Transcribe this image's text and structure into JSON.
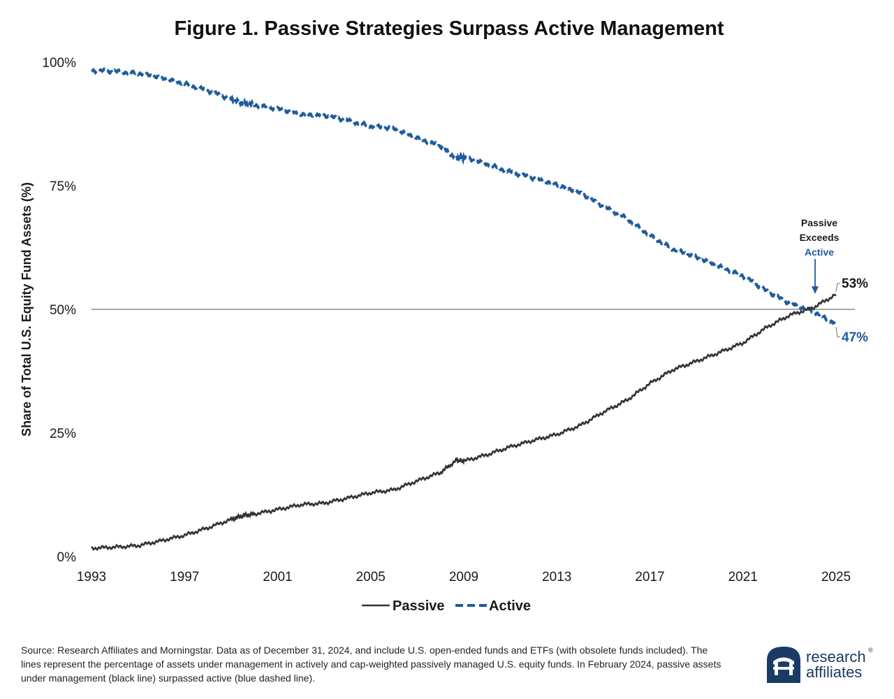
{
  "chart_data": {
    "type": "line",
    "title": "Figure 1. Passive Strategies Surpass Active Management",
    "xlabel": "",
    "ylabel": "Share of Total U.S. Equity Fund Assets (%)",
    "xlim": [
      1993,
      2025
    ],
    "ylim": [
      0,
      100
    ],
    "x_ticks": [
      1993,
      1997,
      2001,
      2005,
      2009,
      2013,
      2017,
      2021,
      2025
    ],
    "y_ticks": [
      {
        "value": 0,
        "label": "0%"
      },
      {
        "value": 25,
        "label": "25%"
      },
      {
        "value": 50,
        "label": "50%"
      },
      {
        "value": 75,
        "label": "75%"
      },
      {
        "value": 100,
        "label": "100%"
      }
    ],
    "reference_line": {
      "y": 50
    },
    "series": [
      {
        "name": "Passive",
        "style": "solid",
        "color": "#333333",
        "x": [
          1993,
          1994,
          1995,
          1996,
          1997,
          1998,
          1999,
          1999.5,
          2000,
          2001,
          2002,
          2003,
          2004,
          2005,
          2006,
          2007,
          2008,
          2008.7,
          2009,
          2010,
          2011,
          2012,
          2013,
          2014,
          2015,
          2016,
          2017,
          2018,
          2019,
          2020,
          2021,
          2022,
          2023,
          2024,
          2025
        ],
        "values": [
          1.7,
          1.9,
          2.2,
          3.2,
          4.3,
          5.8,
          7.5,
          8.3,
          8.6,
          9.5,
          10.5,
          10.8,
          11.8,
          12.9,
          13.5,
          15.3,
          17.0,
          19.5,
          19.3,
          20.6,
          22.2,
          23.5,
          24.7,
          26.5,
          29.2,
          31.6,
          35.0,
          37.8,
          39.5,
          41.3,
          43.2,
          46.3,
          48.8,
          50.3,
          53.0
        ]
      },
      {
        "name": "Active",
        "style": "dashed",
        "color": "#1f5b9e",
        "x": [
          1993,
          1994,
          1995,
          1996,
          1997,
          1998,
          1999,
          1999.5,
          2000,
          2001,
          2002,
          2003,
          2004,
          2005,
          2006,
          2007,
          2008,
          2008.7,
          2009,
          2010,
          2011,
          2012,
          2013,
          2014,
          2015,
          2016,
          2017,
          2018,
          2019,
          2020,
          2021,
          2022,
          2023,
          2024,
          2025
        ],
        "values": [
          98.3,
          98.1,
          97.8,
          96.8,
          95.7,
          94.2,
          92.5,
          91.7,
          91.4,
          90.5,
          89.5,
          89.2,
          88.2,
          87.1,
          86.5,
          84.7,
          83.0,
          80.5,
          80.7,
          79.4,
          77.8,
          76.5,
          75.3,
          73.5,
          70.8,
          68.4,
          65.0,
          62.2,
          60.5,
          58.7,
          56.8,
          53.7,
          51.2,
          49.7,
          47.0
        ]
      }
    ],
    "legend": {
      "position": "bottom-center",
      "entries": [
        "Passive",
        "Active"
      ]
    },
    "annotations": {
      "crossover_line1": "Passive",
      "crossover_line2": "Exceeds",
      "crossover_line3": "Active",
      "crossover_x": 2024.1,
      "end_passive_label": "53%",
      "end_active_label": "47%"
    }
  },
  "footer": {
    "source_text": "Source: Research Affiliates and Morningstar. Data as of December 31, 2024, and include U.S. open-ended funds and ETFs (with obsolete funds included). The lines represent the percentage of assets under management in actively and cap-weighted passively managed U.S. equity funds. In February 2024, passive assets under management (black line) surpassed active (blue dashed line)."
  },
  "logo": {
    "word1": "research",
    "word2": "affiliates",
    "registered": "®",
    "color": "#1b3a66"
  },
  "colors": {
    "passive": "#333333",
    "active": "#1f5b9e",
    "reference": "#8a8a8a"
  }
}
